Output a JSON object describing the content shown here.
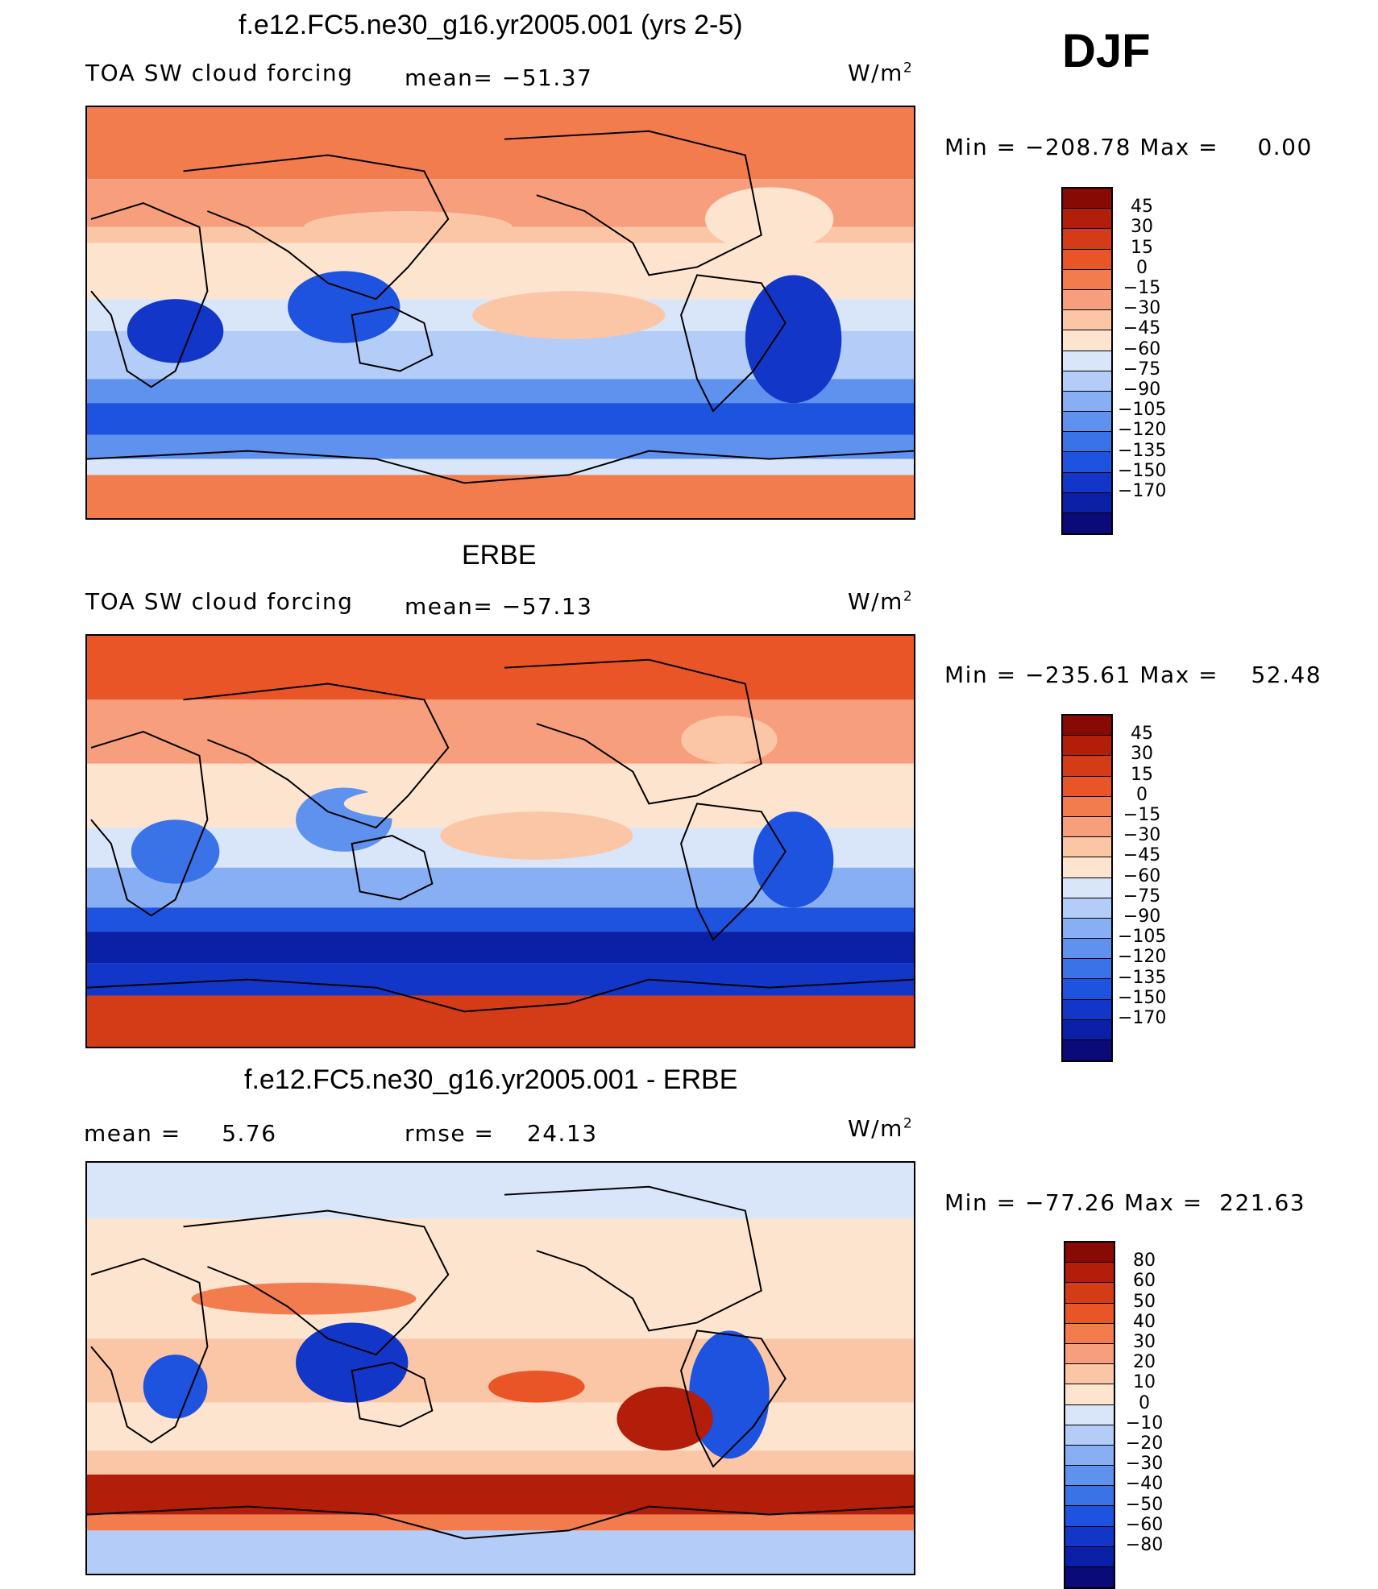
{
  "season": "DJF",
  "colors": {
    "abs_palette": [
      "#0a0a78",
      "#0a20a6",
      "#1237c8",
      "#1d53df",
      "#3a72e8",
      "#5f91ef",
      "#88aef4",
      "#b3cdf8",
      "#d9e6fa",
      "#fde4cf",
      "#fbc6a6",
      "#f79f7c",
      "#f27c4e",
      "#ea5527",
      "#d43c17",
      "#b21e0a",
      "#870a05"
    ],
    "diff_palette": [
      "#0a0a78",
      "#0a20a6",
      "#1237c8",
      "#1d53df",
      "#3a72e8",
      "#5f91ef",
      "#88aef4",
      "#b3cdf8",
      "#d9e6fa",
      "#fde4cf",
      "#fbc6a6",
      "#f79f7c",
      "#f27c4e",
      "#ea5527",
      "#d43c17",
      "#b21e0a",
      "#870a05"
    ]
  },
  "panels": [
    {
      "title": "f.e12.FC5.ne30_g16.yr2005.001 (yrs 2-5)",
      "left_label": "TOA SW cloud forcing",
      "stat_label": "mean=",
      "stat_value": "−51.37",
      "units": "W/m",
      "units_exp": "2",
      "minmax": "Min = −208.78 Max =",
      "max_value": "0.00"
    },
    {
      "title": "ERBE",
      "left_label": "TOA SW cloud forcing",
      "stat_label": "mean=",
      "stat_value": "−57.13",
      "units": "W/m",
      "units_exp": "2",
      "minmax": "Min = −235.61 Max =",
      "max_value": "52.48"
    },
    {
      "title": "f.e12.FC5.ne30_g16.yr2005.001 - ERBE",
      "left_label": "mean =",
      "left_value": "5.76",
      "stat_label": "rmse =",
      "stat_value": "24.13",
      "units": "W/m",
      "units_exp": "2",
      "minmax": "Min = −77.26 Max =",
      "max_value": "221.63"
    }
  ],
  "chart_data": [
    {
      "type": "heatmap",
      "title": "f.e12.FC5.ne30_g16.yr2005.001 (yrs 2-5)",
      "variable": "TOA SW cloud forcing",
      "units": "W/m2",
      "mean": -51.37,
      "min": -208.78,
      "max": 0.0,
      "colorbar_levels": [
        45,
        30,
        15,
        0,
        -15,
        -30,
        -45,
        -60,
        -75,
        -90,
        -105,
        -120,
        -135,
        -150,
        -170
      ],
      "projection": "cylindrical equidistant, centered on Pacific",
      "legend_position": "right"
    },
    {
      "type": "heatmap",
      "title": "ERBE",
      "variable": "TOA SW cloud forcing",
      "units": "W/m2",
      "mean": -57.13,
      "min": -235.61,
      "max": 52.48,
      "colorbar_levels": [
        45,
        30,
        15,
        0,
        -15,
        -30,
        -45,
        -60,
        -75,
        -90,
        -105,
        -120,
        -135,
        -150,
        -170
      ],
      "projection": "cylindrical equidistant, centered on Pacific",
      "legend_position": "right"
    },
    {
      "type": "heatmap",
      "title": "f.e12.FC5.ne30_g16.yr2005.001 - ERBE",
      "units": "W/m2",
      "mean": 5.76,
      "rmse": 24.13,
      "min": -77.26,
      "max": 221.63,
      "colorbar_levels": [
        80,
        60,
        50,
        40,
        30,
        20,
        10,
        0,
        -10,
        -20,
        -30,
        -40,
        -50,
        -60,
        -80
      ],
      "projection": "cylindrical equidistant, centered on Pacific",
      "legend_position": "right"
    }
  ]
}
